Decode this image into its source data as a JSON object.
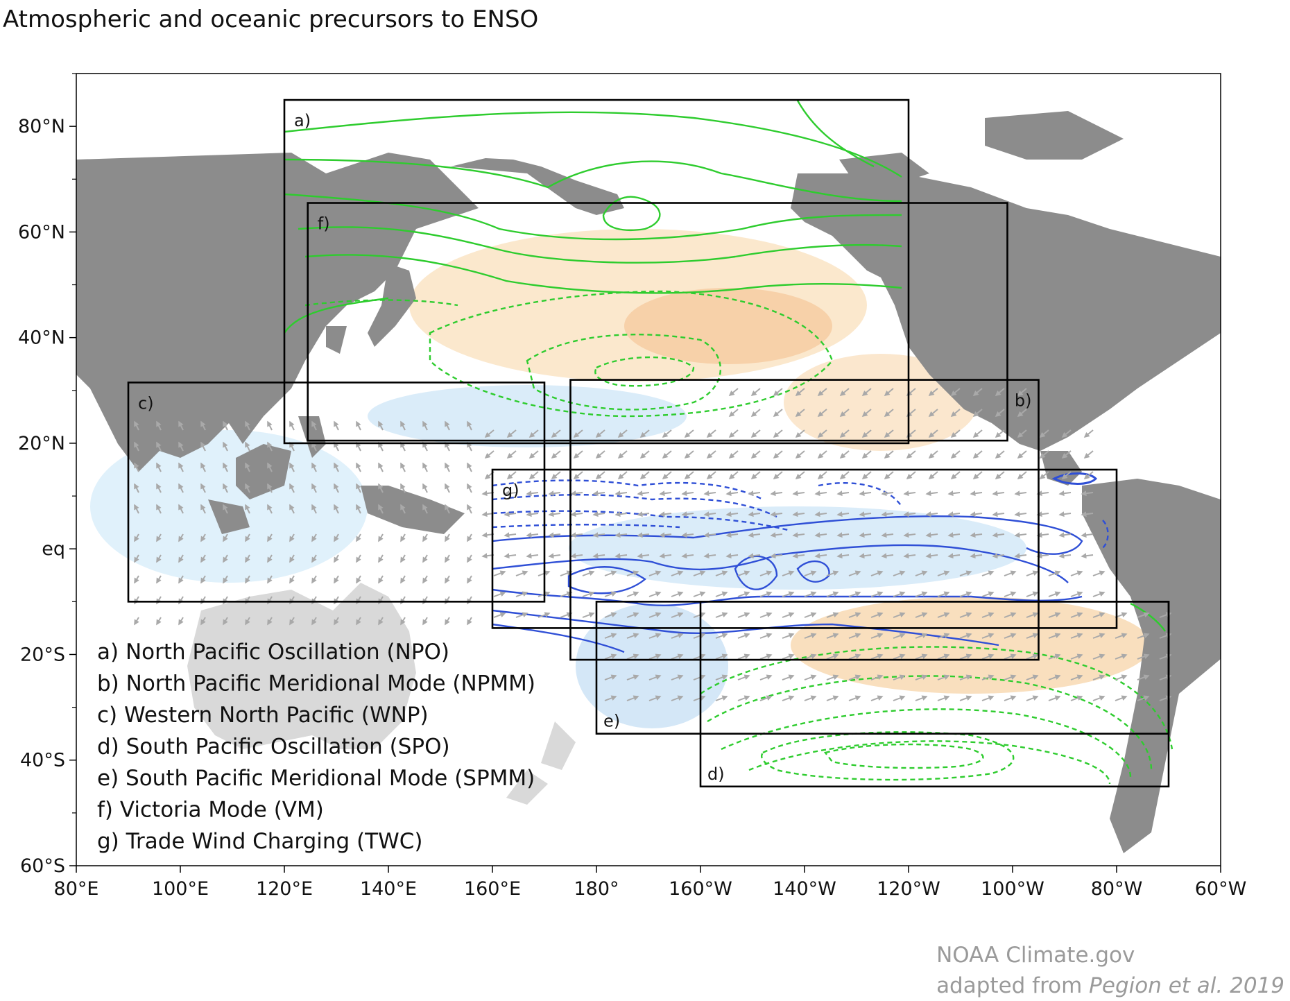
{
  "title": "Atmospheric and oceanic precursors to ENSO",
  "axes": {
    "lon_range": [
      80,
      300
    ],
    "lat_range": [
      -60,
      90
    ],
    "lat_ticks": [
      {
        "lat": 80,
        "label": "80°N"
      },
      {
        "lat": 60,
        "label": "60°N"
      },
      {
        "lat": 40,
        "label": "40°N"
      },
      {
        "lat": 20,
        "label": "20°N"
      },
      {
        "lat": 0,
        "label": "eq"
      },
      {
        "lat": -20,
        "label": "20°S"
      },
      {
        "lat": -40,
        "label": "40°S"
      },
      {
        "lat": -60,
        "label": "60°S"
      }
    ],
    "lon_ticks": [
      {
        "lon": 80,
        "label": "80°E"
      },
      {
        "lon": 100,
        "label": "100°E"
      },
      {
        "lon": 120,
        "label": "120°E"
      },
      {
        "lon": 140,
        "label": "140°E"
      },
      {
        "lon": 160,
        "label": "160°E"
      },
      {
        "lon": 180,
        "label": "180°"
      },
      {
        "lon": 200,
        "label": "160°W"
      },
      {
        "lon": 220,
        "label": "140°W"
      },
      {
        "lon": 240,
        "label": "120°W"
      },
      {
        "lon": 260,
        "label": "100°W"
      },
      {
        "lon": 280,
        "label": "80°W"
      },
      {
        "lon": 300,
        "label": "60°W"
      }
    ]
  },
  "regions": [
    {
      "letter": "a)",
      "name": "North Pacific Oscillation (NPO)",
      "lon": [
        120,
        240
      ],
      "lat": [
        20,
        85
      ],
      "label_pos": "top-left"
    },
    {
      "letter": "b)",
      "name": "North Pacific Meridional Mode (NPMM)",
      "lon": [
        175,
        265
      ],
      "lat": [
        -21,
        32
      ],
      "label_pos": "top-right"
    },
    {
      "letter": "c)",
      "name": "Western North Pacific (WNP)",
      "lon": [
        90,
        170
      ],
      "lat": [
        -10,
        31.5
      ],
      "label_pos": "top-left"
    },
    {
      "letter": "d)",
      "name": "South Pacific Oscillation (SPO)",
      "lon": [
        200,
        290
      ],
      "lat": [
        -45,
        -10
      ],
      "label_pos": "bottom-left"
    },
    {
      "letter": "e)",
      "name": "South Pacific Meridional Mode (SPMM)",
      "lon": [
        180,
        290
      ],
      "lat": [
        -35,
        -10
      ],
      "label_pos": "bottom-left"
    },
    {
      "letter": "f)",
      "name": "Victoria Mode (VM)",
      "lon": [
        124.5,
        259
      ],
      "lat": [
        20.5,
        65.5
      ],
      "label_pos": "top-left"
    },
    {
      "letter": "g)",
      "name": "Trade Wind Charging (TWC)",
      "lon": [
        160,
        280
      ],
      "lat": [
        -15,
        15
      ],
      "label_pos": "top-left"
    }
  ],
  "legend": [
    "a) North Pacific Oscillation (NPO)",
    "b) North Pacific Meridional Mode (NPMM)",
    "c) Western North Pacific (WNP)",
    "d) South Pacific Oscillation (SPO)",
    "e) South Pacific Meridional Mode (SPMM)",
    "f) Victoria Mode (VM)",
    "g) Trade Wind Charging (TWC)"
  ],
  "credit": {
    "line1": "NOAA Climate.gov",
    "line2_prefix": "adapted from ",
    "line2_italic": "Pegion et al. 2019"
  },
  "colors": {
    "land": "#8c8c8c",
    "land_light": "#d9d9d9",
    "contour_green": "#2ecc2e",
    "contour_blue": "#2f4fd6",
    "wind_arrow": "#a9a9a9",
    "sst_warm": "#f6d3a6",
    "sst_cool": "#cfe6f7",
    "box_outline": "#000000"
  }
}
